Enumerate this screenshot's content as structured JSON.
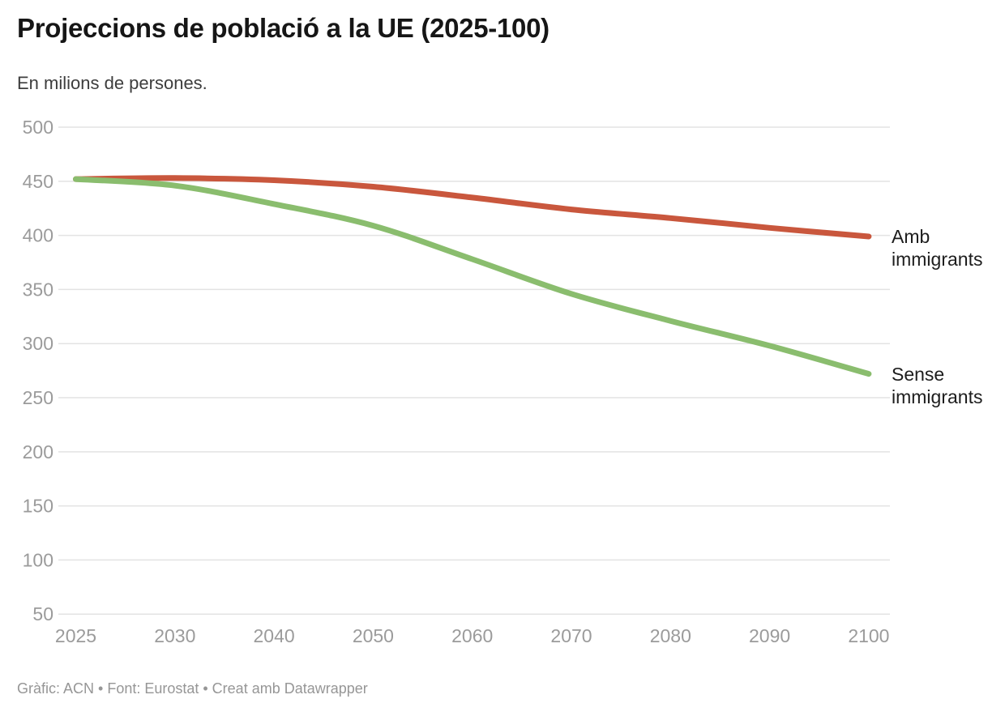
{
  "chart_data": {
    "type": "line",
    "title": "Projeccions de població a la UE (2025-100)",
    "subtitle": "En milions de persones.",
    "footer": "Gràfic: ACN • Font: Eurostat • Creat amb Datawrapper",
    "x_categories": [
      "2025",
      "2030",
      "2040",
      "2050",
      "2060",
      "2070",
      "2080",
      "2090",
      "2100"
    ],
    "x_spacing": "ordinal-equal",
    "series": [
      {
        "name": "Amb immigrants",
        "label_line1": "Amb",
        "label_line2": "immigrants",
        "color": "#c9573d",
        "values": [
          452,
          453,
          451,
          445,
          435,
          424,
          416,
          407,
          399
        ]
      },
      {
        "name": "Sense immigrants",
        "label_line1": "Sense",
        "label_line2": "immigrants",
        "color": "#8abd6e",
        "values": [
          452,
          446,
          429,
          409,
          378,
          346,
          321,
          298,
          272
        ]
      }
    ],
    "ylim": [
      50,
      500
    ],
    "yticks": [
      50,
      100,
      150,
      200,
      250,
      300,
      350,
      400,
      450,
      500
    ],
    "xlabel": "",
    "ylabel": "",
    "grid": "horizontal",
    "legend_position": "end-of-line labels",
    "line_style": "smooth, round caps",
    "colors": {
      "grid": "#e3e3e3",
      "tick_text": "#9b9b9b",
      "label_text": "#1d1d1d"
    }
  }
}
